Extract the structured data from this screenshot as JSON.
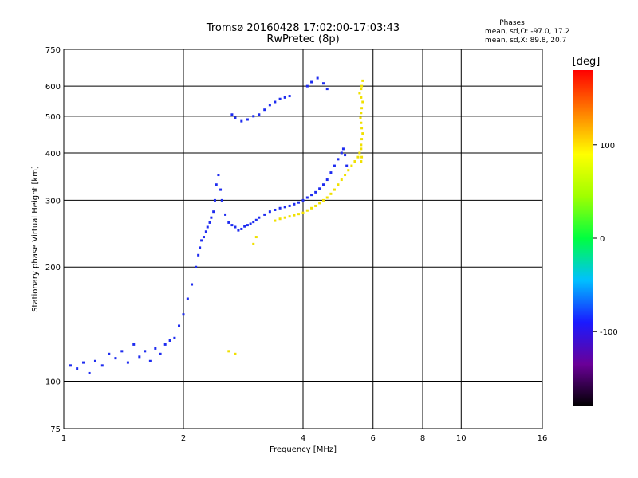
{
  "header": {
    "title_line1": "Tromsø 20160428 17:02:00-17:03:43",
    "title_line2": "RwPretec (8p)",
    "phases_title": "Phases",
    "phases_o": "mean, sd,O: -97.0, 17.2",
    "phases_x": "mean, sd,X:  89.8, 20.7"
  },
  "colors": {
    "o_mode": "#1e2cf0",
    "x_mode": "#f0e000",
    "colorbar": [
      "#000000",
      "#6a0098",
      "#1a1aff",
      "#00c0ff",
      "#00ff40",
      "#a0ff00",
      "#ffff00",
      "#ff8000",
      "#ff0000"
    ]
  },
  "chart_data": {
    "type": "scatter",
    "xlabel": "Frequency [MHz]",
    "ylabel": "Stationary phase Virtual Height [km]",
    "xscale": "log",
    "yscale": "log",
    "xlim": [
      1,
      16
    ],
    "ylim": [
      75,
      750
    ],
    "xticks": [
      1,
      2,
      4,
      6,
      8,
      10,
      16
    ],
    "yticks": [
      75,
      100,
      200,
      300,
      400,
      500,
      600,
      750
    ],
    "grid": true,
    "colorbar": {
      "label": "[deg]",
      "range": [
        -180,
        180
      ],
      "ticks": [
        100,
        0,
        -100
      ]
    },
    "series": [
      {
        "color_group": "blue",
        "x": [
          1.04,
          1.08,
          1.12,
          1.16,
          1.2,
          1.25,
          1.3,
          1.35,
          1.4,
          1.45,
          1.5,
          1.55,
          1.6,
          1.65,
          1.7,
          1.75,
          1.8,
          1.85,
          1.9,
          1.95,
          2.0,
          2.05,
          2.1,
          2.15,
          2.18,
          2.2,
          2.22,
          2.25,
          2.28,
          2.3,
          2.33,
          2.35,
          2.38,
          2.4,
          2.42,
          2.45,
          2.48,
          2.5,
          2.55,
          2.6,
          2.65,
          2.7,
          2.75,
          2.8,
          2.85,
          2.9,
          2.95,
          3.0,
          3.05,
          3.1,
          3.2,
          3.3,
          3.4,
          3.5,
          3.6,
          3.7,
          3.8,
          3.9,
          4.0,
          4.1,
          4.2,
          4.3,
          4.4,
          4.5,
          4.6,
          4.7,
          4.8,
          4.9,
          5.0,
          5.05,
          5.1,
          5.15,
          2.65,
          2.7,
          2.8,
          2.9,
          3.0,
          3.1,
          3.2,
          3.3,
          3.4,
          3.5,
          3.6,
          3.7,
          4.1,
          4.2,
          4.35,
          4.5,
          4.6
        ],
        "y": [
          110,
          108,
          112,
          105,
          113,
          110,
          118,
          115,
          120,
          112,
          125,
          116,
          120,
          113,
          122,
          118,
          125,
          128,
          130,
          140,
          150,
          165,
          180,
          200,
          215,
          225,
          235,
          240,
          248,
          255,
          262,
          270,
          280,
          300,
          330,
          350,
          320,
          300,
          275,
          262,
          258,
          255,
          250,
          252,
          256,
          258,
          260,
          263,
          266,
          270,
          275,
          280,
          283,
          286,
          288,
          290,
          293,
          296,
          300,
          305,
          310,
          315,
          322,
          330,
          340,
          355,
          370,
          385,
          400,
          410,
          395,
          370,
          505,
          495,
          485,
          490,
          500,
          505,
          520,
          535,
          545,
          555,
          560,
          565,
          600,
          615,
          630,
          610,
          590
        ]
      },
      {
        "color_group": "yellow",
        "x": [
          3.4,
          3.5,
          3.6,
          3.7,
          3.8,
          3.9,
          4.0,
          4.1,
          4.2,
          4.3,
          4.4,
          4.5,
          4.6,
          4.7,
          4.8,
          4.9,
          5.0,
          5.1,
          5.2,
          5.3,
          5.4,
          5.5,
          5.55,
          5.6,
          5.6,
          5.62,
          5.65,
          5.62,
          5.6,
          5.58,
          5.6,
          5.62,
          5.65,
          5.6,
          5.55,
          5.6,
          5.62,
          5.65,
          5.6,
          5.62,
          3.0,
          3.05,
          2.6,
          2.7
        ],
        "y": [
          265,
          268,
          270,
          272,
          274,
          276,
          278,
          282,
          286,
          290,
          295,
          300,
          305,
          312,
          320,
          330,
          340,
          350,
          360,
          370,
          380,
          390,
          400,
          410,
          420,
          435,
          450,
          465,
          480,
          495,
          510,
          525,
          545,
          560,
          575,
          590,
          600,
          620,
          380,
          390,
          230,
          240,
          120,
          118
        ]
      }
    ]
  }
}
